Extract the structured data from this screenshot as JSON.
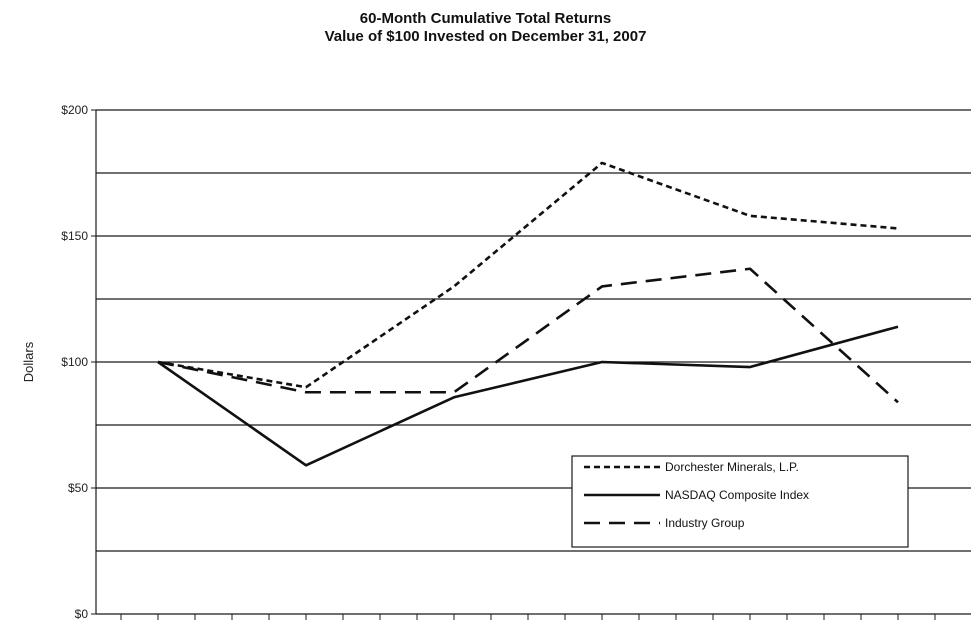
{
  "chart_data": {
    "type": "line",
    "title": "60-Month Cumulative Total Returns",
    "subtitle": "Value of $100 Invested on December 31, 2007",
    "ylabel": "Dollars",
    "xlabel": "",
    "ylim": [
      0,
      200
    ],
    "y_ticks": [
      {
        "value": 0,
        "label": "$0"
      },
      {
        "value": 50,
        "label": "$50"
      },
      {
        "value": 100,
        "label": "$100"
      },
      {
        "value": 150,
        "label": "$150"
      },
      {
        "value": 200,
        "label": "$200"
      }
    ],
    "gridlines": [
      25,
      50,
      75,
      100,
      125,
      150,
      175,
      200
    ],
    "x_positions": [
      0,
      12,
      24,
      36,
      48,
      60
    ],
    "xlim": [
      -12,
      72
    ],
    "legend_position": "bottom-right",
    "series": [
      {
        "name": "Dorchester Minerals, L.P.",
        "dash": "short",
        "values": [
          100,
          90,
          130,
          179,
          158,
          153
        ]
      },
      {
        "name": "NASDAQ Composite Index",
        "dash": "solid",
        "values": [
          100,
          59,
          86,
          100,
          98,
          114
        ]
      },
      {
        "name": "Industry Group",
        "dash": "long",
        "values": [
          100,
          88,
          88,
          130,
          137,
          84
        ]
      }
    ]
  }
}
